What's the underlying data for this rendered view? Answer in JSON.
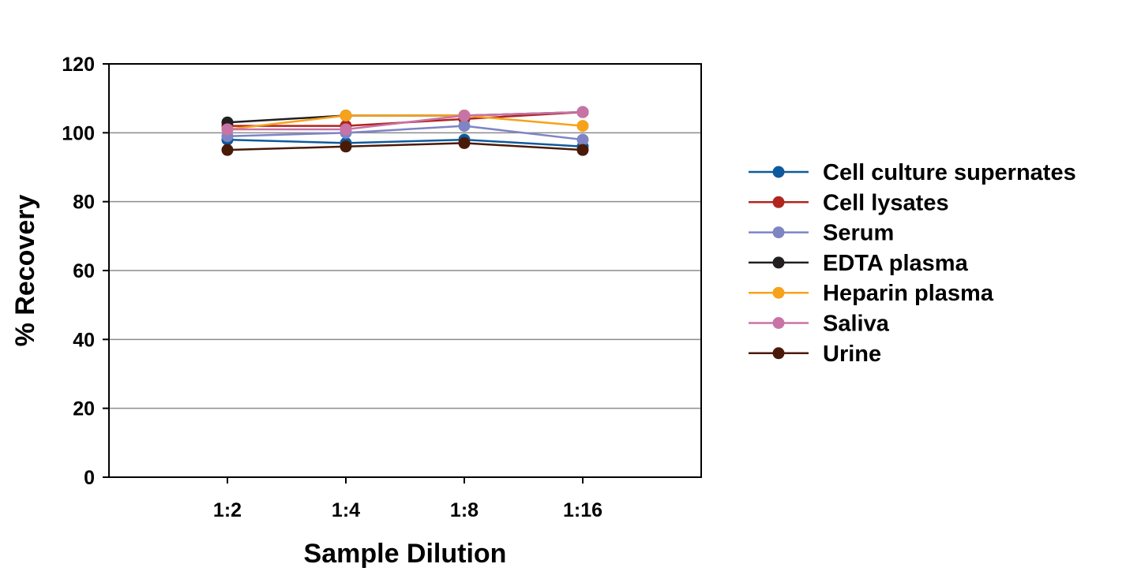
{
  "chart_data": {
    "type": "line",
    "title": "",
    "xlabel": "Sample Dilution",
    "ylabel": "% Recovery",
    "categories": [
      "1:2",
      "1:4",
      "1:8",
      "1:16"
    ],
    "ylim": [
      0,
      120
    ],
    "yticks": [
      "0",
      "20",
      "40",
      "60",
      "80",
      "100",
      "120"
    ],
    "grid": true,
    "legend_position": "right",
    "series": [
      {
        "name": "Cell culture supernates",
        "color": "#0E5A9C",
        "values": [
          98,
          97,
          98,
          96
        ]
      },
      {
        "name": "Cell lysates",
        "color": "#B0261F",
        "values": [
          102,
          102,
          104,
          106
        ]
      },
      {
        "name": "Serum",
        "color": "#7E84C4",
        "values": [
          99,
          100,
          102,
          98
        ]
      },
      {
        "name": "EDTA plasma",
        "color": "#231F20",
        "values": [
          103,
          105,
          105,
          106
        ]
      },
      {
        "name": "Heparin plasma",
        "color": "#F7A21B",
        "values": [
          101,
          105,
          105,
          102
        ]
      },
      {
        "name": "Saliva",
        "color": "#C873A6",
        "values": [
          101,
          101,
          105,
          106
        ]
      },
      {
        "name": "Urine",
        "color": "#4A1A08",
        "values": [
          95,
          96,
          97,
          95
        ]
      }
    ]
  }
}
